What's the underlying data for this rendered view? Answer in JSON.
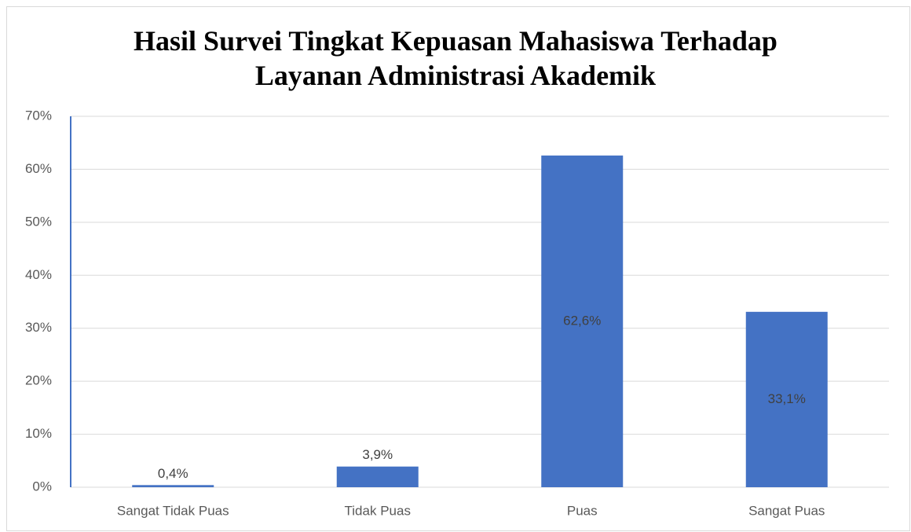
{
  "chart_data": {
    "type": "bar",
    "title": "Hasil Survei Tingkat Kepuasan Mahasiswa Terhadap Layanan Administrasi Akademik",
    "categories": [
      "Sangat Tidak Puas",
      "Tidak Puas",
      "Puas",
      "Sangat Puas"
    ],
    "values": [
      0.4,
      3.9,
      62.6,
      33.1
    ],
    "value_labels": [
      "0,4%",
      "3,9%",
      "62,6%",
      "33,1%"
    ],
    "color": "#4472c4",
    "ylim": [
      0,
      70
    ],
    "yticks": [
      {
        "value": 0,
        "label": "0%"
      },
      {
        "value": 10,
        "label": "10%"
      },
      {
        "value": 20,
        "label": "20%"
      },
      {
        "value": 30,
        "label": "30%"
      },
      {
        "value": 40,
        "label": "40%"
      },
      {
        "value": 50,
        "label": "50%"
      },
      {
        "value": 60,
        "label": "60%"
      },
      {
        "value": 70,
        "label": "70%"
      }
    ],
    "grid": true
  }
}
